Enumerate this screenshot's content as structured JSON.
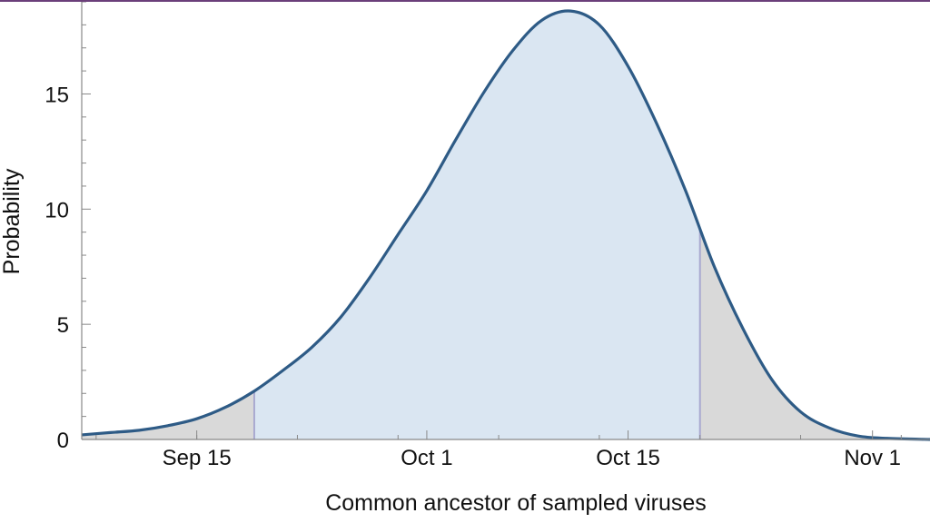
{
  "chart_data": {
    "type": "area",
    "title": "",
    "xlabel": "Common ancestor of sampled viruses",
    "ylabel": "Probability",
    "x_unit": "date",
    "xlim": [
      "2019-09-07",
      "2019-11-05"
    ],
    "ylim": [
      0,
      19
    ],
    "y_ticks": [
      0,
      5,
      10,
      15
    ],
    "x_ticks": [
      {
        "date": "2019-09-15",
        "label": "Sep 15"
      },
      {
        "date": "2019-10-01",
        "label": "Oct 1"
      },
      {
        "date": "2019-10-15",
        "label": "Oct 15"
      },
      {
        "date": "2019-11-01",
        "label": "Nov 1"
      }
    ],
    "interval": {
      "start": "2019-09-19",
      "end": "2019-10-20"
    },
    "grid": false,
    "legend": "none",
    "series": [
      {
        "x": [
          "2019-09-07",
          "2019-09-09",
          "2019-09-11",
          "2019-09-13",
          "2019-09-15",
          "2019-09-17",
          "2019-09-19",
          "2019-09-21",
          "2019-09-23",
          "2019-09-25",
          "2019-09-27",
          "2019-09-29",
          "2019-10-01",
          "2019-10-03",
          "2019-10-05",
          "2019-10-07",
          "2019-10-09",
          "2019-10-11",
          "2019-10-13",
          "2019-10-15",
          "2019-10-17",
          "2019-10-19",
          "2019-10-21",
          "2019-10-23",
          "2019-10-25",
          "2019-10-27",
          "2019-10-29",
          "2019-10-31",
          "2019-11-02",
          "2019-11-05"
        ],
        "y": [
          0.2,
          0.3,
          0.4,
          0.6,
          0.9,
          1.4,
          2.1,
          3.0,
          4.0,
          5.3,
          7.0,
          8.9,
          10.8,
          13.0,
          15.1,
          16.9,
          18.2,
          18.6,
          18.0,
          16.2,
          13.7,
          10.8,
          7.5,
          4.8,
          2.6,
          1.2,
          0.5,
          0.15,
          0.05,
          0.0
        ]
      }
    ],
    "colors": {
      "line": "#2e5b86",
      "interval_fill": "#dae6f2",
      "tail_fill": "#d9d9d9",
      "interval_edge": "#a9a9d0",
      "axis": "#888888",
      "frame_top": "#6b3f7a"
    }
  }
}
